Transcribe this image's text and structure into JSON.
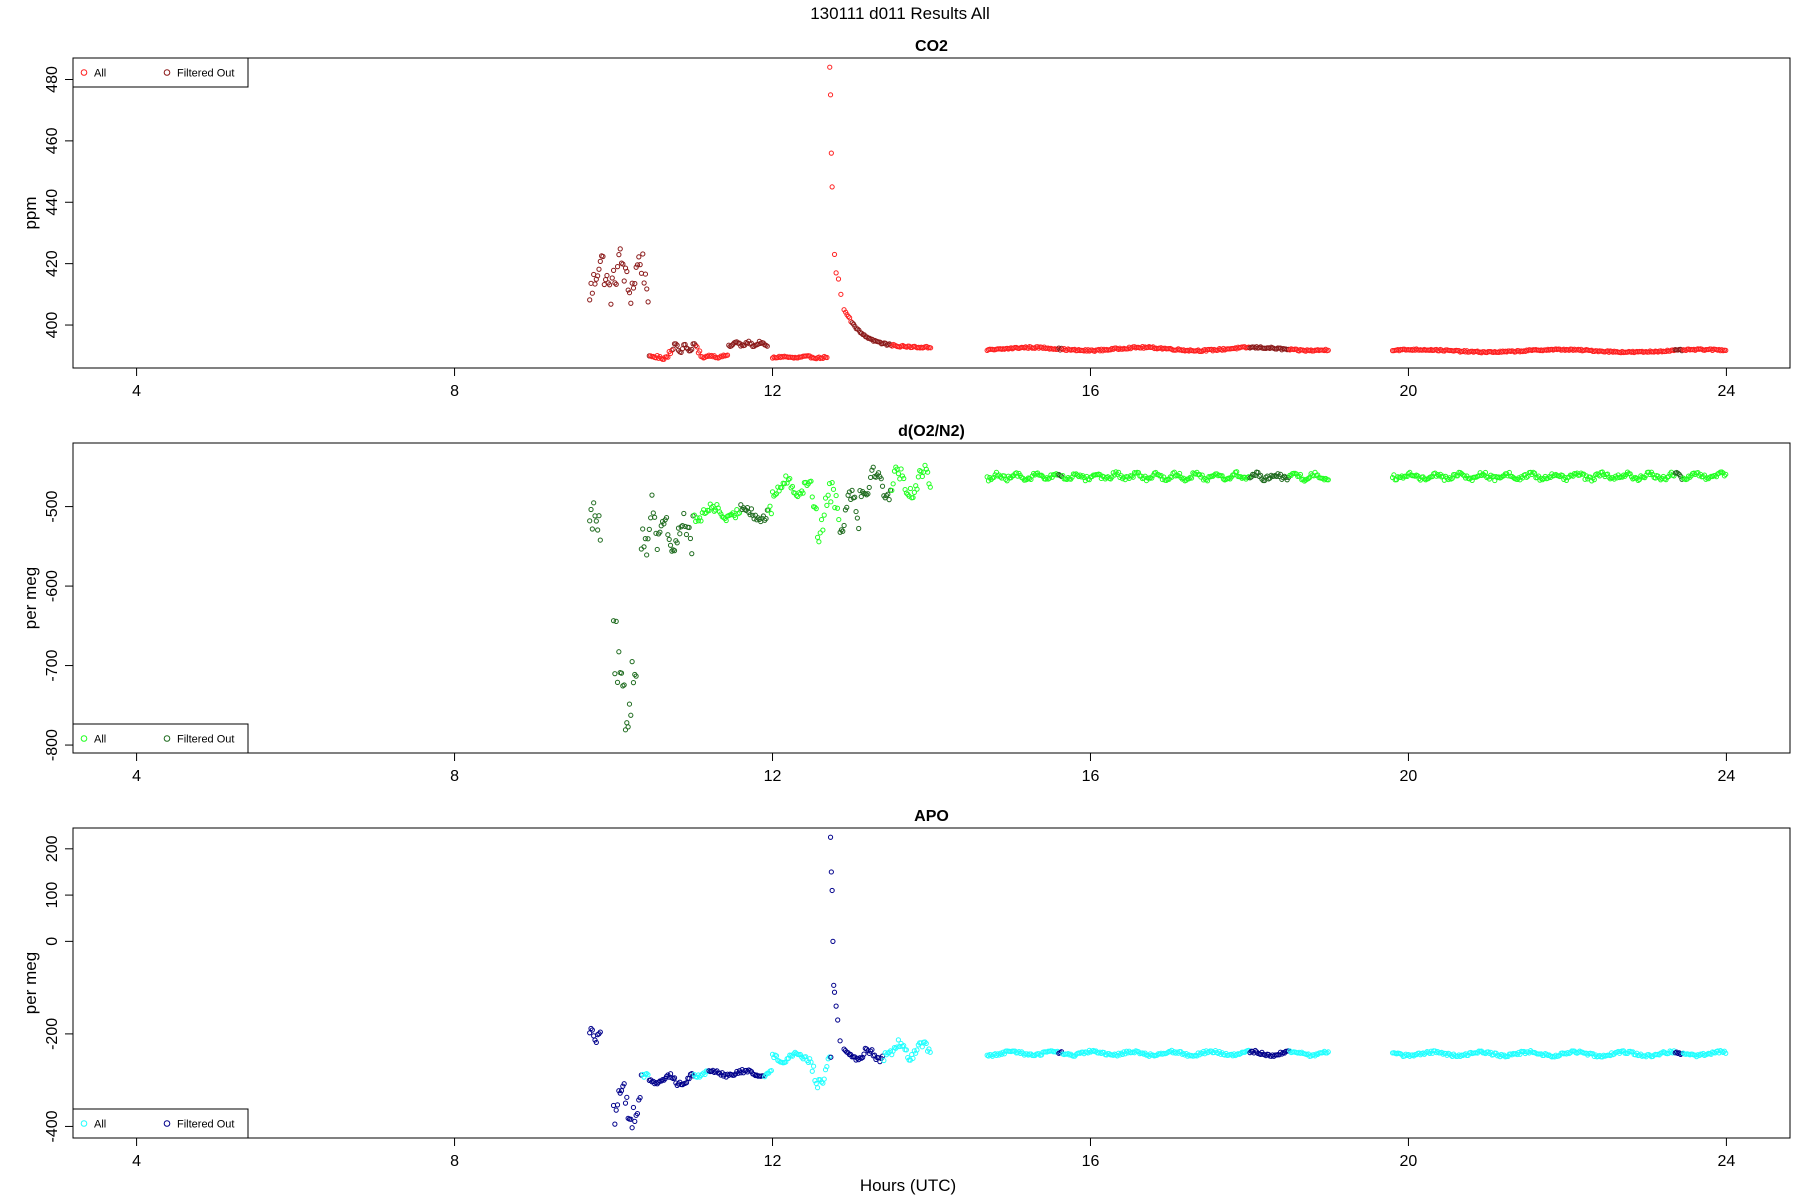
{
  "figure": {
    "title": "130111   d011   Results All",
    "xlabel": "Hours (UTC)"
  },
  "chart_data": [
    {
      "type": "scatter",
      "title": "CO2",
      "xlabel": "Hours (UTC)",
      "ylabel": "ppm",
      "xlim": [
        3.2,
        24.8
      ],
      "ylim": [
        386,
        487
      ],
      "x_ticks": [
        4,
        8,
        12,
        16,
        20,
        24
      ],
      "x_tick_labels": [
        "4",
        "8",
        "12",
        "16",
        "20",
        "24"
      ],
      "y_ticks": [
        400,
        420,
        440,
        460,
        480
      ],
      "y_tick_labels": [
        "400",
        "420",
        "440",
        "460",
        "480"
      ],
      "grid": false,
      "legend": {
        "placement": "top-left",
        "entries": [
          "All",
          "Filtered Out"
        ]
      },
      "colors": {
        "all": "#ff2020",
        "filtered": "#8b1a1a"
      },
      "series": [
        {
          "name": "All",
          "segments": [
            {
              "start": 9.7,
              "end": 10.45,
              "mean": 416,
              "amp": 5,
              "noise": 5,
              "period": 0.25
            },
            {
              "start": 10.45,
              "end": 10.7,
              "mean": 389.5,
              "amp": 0.3,
              "noise": 0.5,
              "period": 0.2
            },
            {
              "start": 10.7,
              "end": 11.1,
              "mean": 392.5,
              "amp": 1.2,
              "noise": 0.6,
              "period": 0.12
            },
            {
              "start": 11.1,
              "end": 11.45,
              "mean": 389.8,
              "amp": 0.3,
              "noise": 0.3,
              "period": 0.2
            },
            {
              "start": 11.45,
              "end": 11.95,
              "mean": 393.8,
              "amp": 0.6,
              "noise": 0.4,
              "period": 0.15
            },
            {
              "start": 12.0,
              "end": 12.7,
              "mean": 389.5,
              "amp": 0.2,
              "noise": 0.3,
              "period": 0.3
            },
            {
              "start": 14.7,
              "end": 19.0,
              "mean": 392.2,
              "amp": 0.5,
              "noise": 0.3,
              "period": 1.4
            },
            {
              "start": 19.8,
              "end": 24.0,
              "mean": 391.6,
              "amp": 0.4,
              "noise": 0.25,
              "period": 1.8
            }
          ],
          "decay": {
            "start": 12.72,
            "end": 14.0,
            "base": 392.6,
            "peak": 484,
            "tau": 0.22
          },
          "decay_points": [
            [
              12.72,
              484
            ],
            [
              12.73,
              475
            ],
            [
              12.74,
              456
            ],
            [
              12.75,
              445
            ],
            [
              12.78,
              423
            ],
            [
              12.8,
              417
            ],
            [
              12.83,
              415
            ],
            [
              12.86,
              410
            ],
            [
              12.9,
              405
            ]
          ]
        },
        {
          "name": "Filtered Out",
          "ranges": [
            [
              9.7,
              10.45
            ],
            [
              10.75,
              11.05
            ],
            [
              11.45,
              11.95
            ],
            [
              13.0,
              13.5
            ],
            [
              15.6,
              15.65
            ],
            [
              18.0,
              18.5
            ],
            [
              23.35,
              23.45
            ]
          ]
        }
      ]
    },
    {
      "type": "scatter",
      "title": "d(O2/N2)",
      "xlabel": "Hours (UTC)",
      "ylabel": "per meg",
      "xlim": [
        3.2,
        24.8
      ],
      "ylim": [
        -810,
        -420
      ],
      "x_ticks": [
        4,
        8,
        12,
        16,
        20,
        24
      ],
      "x_tick_labels": [
        "4",
        "8",
        "12",
        "16",
        "20",
        "24"
      ],
      "y_ticks": [
        -500,
        -600,
        -700,
        -800
      ],
      "y_tick_labels": [
        "-500",
        "-600",
        "-700",
        "-800"
      ],
      "grid": false,
      "legend": {
        "placement": "bottom-left",
        "entries": [
          "All",
          "Filtered Out"
        ]
      },
      "colors": {
        "all": "#20ff20",
        "filtered": "#1f6b1f"
      },
      "series": [
        {
          "name": "All",
          "segments": [
            {
              "start": 9.7,
              "end": 9.85,
              "mean": -530,
              "amp": 30,
              "noise": 25,
              "period": 0.3
            },
            {
              "start": 10.0,
              "end": 10.3,
              "mean": -720,
              "amp": 45,
              "noise": 40,
              "period": 0.3
            },
            {
              "start": 10.35,
              "end": 10.55,
              "mean": -525,
              "amp": 30,
              "noise": 20,
              "period": 0.2
            },
            {
              "start": 10.55,
              "end": 11.0,
              "mean": -535,
              "amp": 18,
              "noise": 12,
              "period": 0.25
            },
            {
              "start": 11.0,
              "end": 12.0,
              "mean": -508,
              "amp": 8,
              "noise": 6,
              "period": 0.4
            },
            {
              "start": 12.0,
              "end": 12.5,
              "mean": -475,
              "amp": 8,
              "noise": 6,
              "period": 0.3
            },
            {
              "start": 12.5,
              "end": 12.7,
              "mean": -510,
              "amp": 25,
              "noise": 15,
              "period": 0.2
            },
            {
              "start": 12.7,
              "end": 13.1,
              "mean": -500,
              "amp": 22,
              "noise": 15,
              "period": 0.25
            },
            {
              "start": 13.1,
              "end": 14.0,
              "mean": -470,
              "amp": 15,
              "noise": 10,
              "period": 0.3
            },
            {
              "start": 14.7,
              "end": 19.0,
              "mean": -462,
              "amp": 3,
              "noise": 3,
              "period": 0.25
            },
            {
              "start": 19.8,
              "end": 24.0,
              "mean": -462,
              "amp": 3,
              "noise": 3,
              "period": 0.3
            }
          ]
        },
        {
          "name": "Filtered Out",
          "ranges": [
            [
              9.7,
              10.45
            ],
            [
              10.45,
              11.0
            ],
            [
              11.6,
              11.95
            ],
            [
              12.85,
              13.5
            ],
            [
              15.6,
              15.65
            ],
            [
              18.0,
              18.5
            ],
            [
              23.35,
              23.45
            ]
          ]
        }
      ]
    },
    {
      "type": "scatter",
      "title": "APO",
      "xlabel": "Hours (UTC)",
      "ylabel": "per meg",
      "xlim": [
        3.2,
        24.8
      ],
      "ylim": [
        -425,
        245
      ],
      "x_ticks": [
        4,
        8,
        12,
        16,
        20,
        24
      ],
      "x_tick_labels": [
        "4",
        "8",
        "12",
        "16",
        "20",
        "24"
      ],
      "y_ticks": [
        200,
        100,
        0,
        -200,
        -400
      ],
      "y_tick_labels": [
        "200",
        "100",
        "0",
        "-200",
        "-400"
      ],
      "grid": false,
      "legend": {
        "placement": "bottom-left",
        "entries": [
          "All",
          "Filtered Out"
        ]
      },
      "colors": {
        "all": "#20ffff",
        "filtered": "#00008b"
      },
      "series": [
        {
          "name": "All",
          "segments": [
            {
              "start": 9.7,
              "end": 9.85,
              "mean": -200,
              "amp": 10,
              "noise": 10,
              "period": 0.2
            },
            {
              "start": 10.0,
              "end": 10.35,
              "mean": -355,
              "amp": 25,
              "noise": 25,
              "period": 0.25
            },
            {
              "start": 10.35,
              "end": 11.0,
              "mean": -300,
              "amp": 10,
              "noise": 6,
              "period": 0.3
            },
            {
              "start": 11.0,
              "end": 12.0,
              "mean": -285,
              "amp": 5,
              "noise": 4,
              "period": 0.4
            },
            {
              "start": 12.0,
              "end": 12.5,
              "mean": -250,
              "amp": 8,
              "noise": 5,
              "period": 0.35
            },
            {
              "start": 12.5,
              "end": 12.75,
              "mean": -280,
              "amp": 30,
              "noise": 15,
              "period": 0.3
            },
            {
              "start": 12.9,
              "end": 13.5,
              "mean": -245,
              "amp": 10,
              "noise": 7,
              "period": 0.3
            },
            {
              "start": 13.5,
              "end": 14.0,
              "mean": -235,
              "amp": 15,
              "noise": 8,
              "period": 0.3
            },
            {
              "start": 14.7,
              "end": 19.0,
              "mean": -242,
              "amp": 4,
              "noise": 3,
              "period": 0.5
            },
            {
              "start": 19.8,
              "end": 24.0,
              "mean": -243,
              "amp": 4,
              "noise": 3,
              "period": 0.6
            }
          ],
          "spike_points": [
            [
              12.73,
              225
            ],
            [
              12.74,
              150
            ],
            [
              12.75,
              110
            ],
            [
              12.76,
              0
            ],
            [
              12.77,
              -95
            ],
            [
              12.78,
              -110
            ],
            [
              12.8,
              -140
            ],
            [
              12.82,
              -170
            ],
            [
              12.85,
              -215
            ]
          ]
        },
        {
          "name": "Filtered Out",
          "ranges": [
            [
              9.7,
              10.35
            ],
            [
              10.45,
              11.0
            ],
            [
              11.2,
              11.9
            ],
            [
              12.73,
              13.4
            ],
            [
              15.6,
              15.65
            ],
            [
              18.0,
              18.5
            ],
            [
              23.35,
              23.45
            ]
          ]
        }
      ]
    }
  ]
}
